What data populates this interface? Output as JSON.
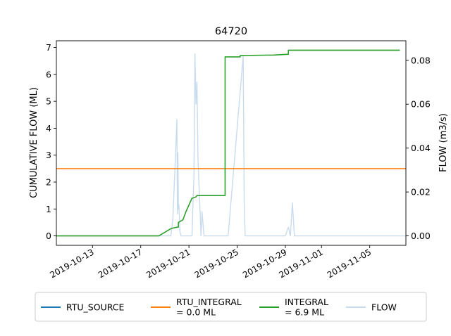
{
  "chart_data": {
    "type": "line",
    "title": "64720",
    "ylabel_left": "CUMULATIVE FLOW (ML)",
    "ylabel_right": "FLOW (m3/s)",
    "xlabel": "",
    "x_ticks": [
      "2019-10-13",
      "2019-10-17",
      "2019-10-21",
      "2019-10-25",
      "2019-10-29",
      "2019-11-01",
      "2019-11-05"
    ],
    "xlim": [
      "2019-10-10",
      "2019-11-08"
    ],
    "ylim_left": [
      -0.35,
      7.25
    ],
    "ylim_right": [
      -0.0043,
      0.0889
    ],
    "y_ticks_left": [
      0,
      1,
      2,
      3,
      4,
      5,
      6,
      7
    ],
    "y_ticks_right": [
      0.0,
      0.02,
      0.04,
      0.06,
      0.08
    ],
    "y_tick_labels_right": [
      "0.00",
      "0.02",
      "0.04",
      "0.06",
      "0.08"
    ],
    "legend_position": "bottom-center",
    "series": [
      {
        "name": "RTU_SOURCE",
        "axis": "left",
        "color": "#1f77b4",
        "x": [],
        "y": []
      },
      {
        "name": "RTU_INTEGRAL\n= 0.0 ML",
        "axis": "left",
        "color": "#ff7f0e",
        "x": [
          "2019-10-10",
          "2019-11-08"
        ],
        "y": [
          2.5,
          2.5
        ]
      },
      {
        "name": "INTEGRAL\n= 6.9 ML",
        "axis": "left",
        "color": "#2ca02c",
        "x": [
          "2019-10-10",
          "2019-10-18T12:00",
          "2019-10-19T12:00",
          "2019-10-19T18:00",
          "2019-10-20T00:00",
          "2019-10-20T03:00",
          "2019-10-20T03:00",
          "2019-10-20T12:00",
          "2019-10-20T18:00",
          "2019-10-21T06:00",
          "2019-10-21T10:00",
          "2019-10-21T14:00",
          "2019-10-21T16:00",
          "2019-10-22T06:00",
          "2019-10-24T00:00",
          "2019-10-24T00:00",
          "2019-10-25T06:00",
          "2019-10-25T06:00",
          "2019-10-28T00:00",
          "2019-10-29T06:00",
          "2019-10-29T06:00",
          "2019-11-07T12:00"
        ],
        "y": [
          0.0,
          0.0,
          0.27,
          0.3,
          0.32,
          0.33,
          0.5,
          0.6,
          0.9,
          1.4,
          1.42,
          1.45,
          1.5,
          1.5,
          1.5,
          6.65,
          6.65,
          6.7,
          6.72,
          6.75,
          6.9,
          6.9
        ]
      },
      {
        "name": "FLOW",
        "axis": "right",
        "color": "#c9dcee",
        "x": [
          "2019-10-10",
          "2019-10-19T12:00",
          "2019-10-19T16:00",
          "2019-10-19T20:00",
          "2019-10-20T00:00",
          "2019-10-20T01:00",
          "2019-10-20T02:00",
          "2019-10-20T03:00",
          "2019-10-20T04:00",
          "2019-10-20T06:00",
          "2019-10-20T08:00",
          "2019-10-20T10:00",
          "2019-10-20T14:00",
          "2019-10-20T18:00",
          "2019-10-21T06:00",
          "2019-10-21T10:00",
          "2019-10-21T12:00",
          "2019-10-21T14:00",
          "2019-10-21T16:00",
          "2019-10-21T18:00",
          "2019-10-22T00:00",
          "2019-10-22T02:00",
          "2019-10-22T06:00",
          "2019-10-24T06:00",
          "2019-10-25T12:00",
          "2019-10-25T14:00",
          "2019-10-25T16:00",
          "2019-10-25T18:00",
          "2019-10-29T00:00",
          "2019-10-29T06:00",
          "2019-10-29T10:00",
          "2019-10-29T14:00",
          "2019-10-29T18:00",
          "2019-11-08"
        ],
        "y": [
          0.0,
          0.0,
          0.008,
          0.03,
          0.053,
          0.01,
          0.038,
          0.012,
          0.014,
          0.002,
          0.0,
          0.0,
          0.0,
          0.0,
          0.0,
          0.028,
          0.083,
          0.06,
          0.07,
          0.035,
          0.0,
          0.011,
          0.0,
          0.0,
          0.082,
          0.015,
          0.0,
          0.0,
          0.0,
          0.004,
          0.0,
          0.015,
          0.0,
          0.0
        ]
      }
    ]
  }
}
